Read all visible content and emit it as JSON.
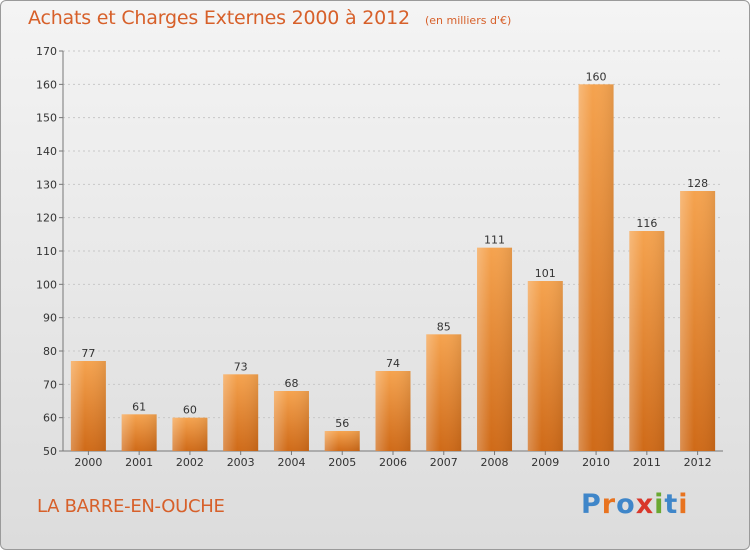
{
  "header": {
    "title": "Achats et Charges Externes 2000 à 2012",
    "unit": "(en milliers d'€)"
  },
  "footer": {
    "commune": "LA BARRE-EN-OUCHE",
    "logo": [
      "P",
      "r",
      "o",
      "x",
      "i",
      "t",
      "i"
    ]
  },
  "colors": {
    "title": "#d7602a",
    "bar_light": "#f5a34f",
    "bar_dark": "#cf6a18"
  },
  "chart_data": {
    "type": "bar",
    "categories": [
      "2000",
      "2001",
      "2002",
      "2003",
      "2004",
      "2005",
      "2006",
      "2007",
      "2008",
      "2009",
      "2010",
      "2011",
      "2012"
    ],
    "values": [
      77,
      61,
      60,
      73,
      68,
      56,
      74,
      85,
      111,
      101,
      160,
      116,
      128
    ],
    "title": "Achats et Charges Externes 2000 à 2012",
    "xlabel": "",
    "ylabel": "",
    "ylim": [
      50,
      170
    ],
    "yticks": [
      50,
      60,
      70,
      80,
      90,
      100,
      110,
      120,
      130,
      140,
      150,
      160,
      170
    ],
    "grid": true
  }
}
